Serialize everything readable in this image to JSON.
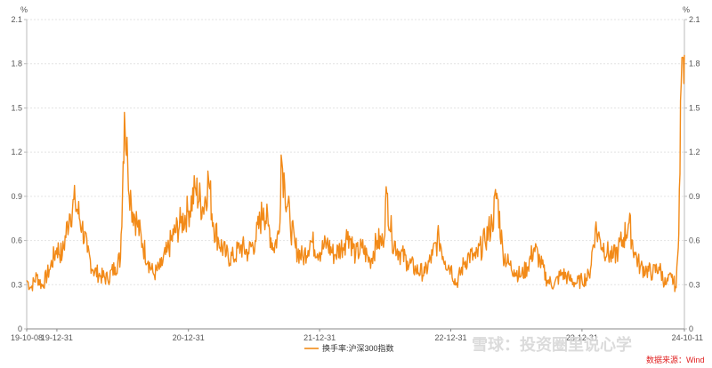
{
  "chart_data": {
    "type": "line",
    "title": "",
    "y_unit_left": "%",
    "y_unit_right": "%",
    "ylim": [
      0,
      2.1
    ],
    "y_ticks": [
      "0",
      "0.3",
      "0.6",
      "0.9",
      "1.2",
      "1.5",
      "1.8",
      "2.1"
    ],
    "x_start": "2019-10-08",
    "x_end": "2024-10-11",
    "x_ticks": [
      {
        "date": "2019-10-08",
        "label": "19-10-08"
      },
      {
        "date": "2019-12-31",
        "label": "19-12-31"
      },
      {
        "date": "2020-12-31",
        "label": "20-12-31"
      },
      {
        "date": "2021-12-31",
        "label": "21-12-31"
      },
      {
        "date": "2022-12-31",
        "label": "22-12-31"
      },
      {
        "date": "2023-12-31",
        "label": "23-12-31"
      },
      {
        "date": "2024-10-11",
        "label": "24-10-11"
      }
    ],
    "grid": true,
    "legend_position": "bottom-center",
    "series": [
      {
        "name": "换手率:沪深300指数",
        "color": "#f28a18",
        "points": [
          [
            "2019-10-08",
            0.33
          ],
          [
            "2019-10-20",
            0.28
          ],
          [
            "2019-11-05",
            0.36
          ],
          [
            "2019-11-20",
            0.29
          ],
          [
            "2019-12-10",
            0.4
          ],
          [
            "2019-12-31",
            0.55
          ],
          [
            "2020-01-15",
            0.5
          ],
          [
            "2020-02-04",
            0.78
          ],
          [
            "2020-02-20",
            0.86
          ],
          [
            "2020-03-10",
            0.7
          ],
          [
            "2020-03-25",
            0.52
          ],
          [
            "2020-04-10",
            0.4
          ],
          [
            "2020-05-01",
            0.36
          ],
          [
            "2020-05-20",
            0.34
          ],
          [
            "2020-06-10",
            0.42
          ],
          [
            "2020-06-25",
            0.48
          ],
          [
            "2020-07-06",
            1.47
          ],
          [
            "2020-07-15",
            1.12
          ],
          [
            "2020-07-25",
            0.85
          ],
          [
            "2020-08-10",
            0.72
          ],
          [
            "2020-08-25",
            0.58
          ],
          [
            "2020-09-10",
            0.46
          ],
          [
            "2020-09-25",
            0.37
          ],
          [
            "2020-10-15",
            0.42
          ],
          [
            "2020-11-01",
            0.52
          ],
          [
            "2020-11-20",
            0.64
          ],
          [
            "2020-12-10",
            0.72
          ],
          [
            "2020-12-31",
            0.8
          ],
          [
            "2021-01-20",
            0.95
          ],
          [
            "2021-02-10",
            0.82
          ],
          [
            "2021-02-25",
            1.02
          ],
          [
            "2021-03-10",
            0.72
          ],
          [
            "2021-03-25",
            0.6
          ],
          [
            "2021-04-15",
            0.5
          ],
          [
            "2021-05-05",
            0.48
          ],
          [
            "2021-05-25",
            0.56
          ],
          [
            "2021-06-15",
            0.52
          ],
          [
            "2021-07-05",
            0.6
          ],
          [
            "2021-07-28",
            0.82
          ],
          [
            "2021-08-10",
            0.7
          ],
          [
            "2021-08-25",
            0.55
          ],
          [
            "2021-09-10",
            0.66
          ],
          [
            "2021-09-15",
            1.18
          ],
          [
            "2021-09-25",
            0.98
          ],
          [
            "2021-10-10",
            0.72
          ],
          [
            "2021-10-25",
            0.55
          ],
          [
            "2021-11-15",
            0.48
          ],
          [
            "2021-12-05",
            0.6
          ],
          [
            "2021-12-31",
            0.52
          ],
          [
            "2022-01-20",
            0.58
          ],
          [
            "2022-02-10",
            0.5
          ],
          [
            "2022-03-10",
            0.58
          ],
          [
            "2022-03-20",
            0.66
          ],
          [
            "2022-04-10",
            0.5
          ],
          [
            "2022-04-28",
            0.55
          ],
          [
            "2022-05-20",
            0.46
          ],
          [
            "2022-06-10",
            0.6
          ],
          [
            "2022-06-25",
            0.58
          ],
          [
            "2022-07-06",
            0.92
          ],
          [
            "2022-07-20",
            0.62
          ],
          [
            "2022-08-10",
            0.52
          ],
          [
            "2022-09-01",
            0.46
          ],
          [
            "2022-09-25",
            0.4
          ],
          [
            "2022-10-20",
            0.38
          ],
          [
            "2022-11-10",
            0.5
          ],
          [
            "2022-11-28",
            0.62
          ],
          [
            "2022-12-15",
            0.46
          ],
          [
            "2022-12-31",
            0.42
          ],
          [
            "2023-01-15",
            0.3
          ],
          [
            "2023-02-05",
            0.44
          ],
          [
            "2023-02-20",
            0.5
          ],
          [
            "2023-03-10",
            0.48
          ],
          [
            "2023-04-05",
            0.6
          ],
          [
            "2023-04-25",
            0.72
          ],
          [
            "2023-05-08",
            0.92
          ],
          [
            "2023-05-25",
            0.52
          ],
          [
            "2023-06-10",
            0.44
          ],
          [
            "2023-06-25",
            0.4
          ],
          [
            "2023-07-15",
            0.36
          ],
          [
            "2023-08-01",
            0.42
          ],
          [
            "2023-08-20",
            0.55
          ],
          [
            "2023-09-05",
            0.46
          ],
          [
            "2023-09-25",
            0.33
          ],
          [
            "2023-10-15",
            0.3
          ],
          [
            "2023-11-05",
            0.38
          ],
          [
            "2023-11-25",
            0.34
          ],
          [
            "2023-12-15",
            0.31
          ],
          [
            "2023-12-31",
            0.33
          ],
          [
            "2024-01-20",
            0.36
          ],
          [
            "2024-02-06",
            0.68
          ],
          [
            "2024-02-20",
            0.6
          ],
          [
            "2024-03-10",
            0.52
          ],
          [
            "2024-03-25",
            0.48
          ],
          [
            "2024-04-10",
            0.54
          ],
          [
            "2024-04-25",
            0.62
          ],
          [
            "2024-05-10",
            0.72
          ],
          [
            "2024-05-25",
            0.52
          ],
          [
            "2024-06-10",
            0.42
          ],
          [
            "2024-06-28",
            0.4
          ],
          [
            "2024-07-15",
            0.38
          ],
          [
            "2024-08-01",
            0.42
          ],
          [
            "2024-08-20",
            0.3
          ],
          [
            "2024-09-05",
            0.35
          ],
          [
            "2024-09-18",
            0.28
          ],
          [
            "2024-09-24",
            0.55
          ],
          [
            "2024-09-27",
            0.95
          ],
          [
            "2024-09-30",
            1.55
          ],
          [
            "2024-10-08",
            1.84
          ],
          [
            "2024-10-11",
            1.86
          ]
        ]
      }
    ],
    "source": "数据来源：Wind"
  },
  "watermark": "雪球：投资圈里说心学"
}
